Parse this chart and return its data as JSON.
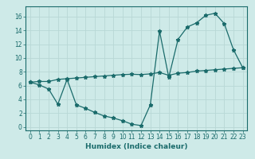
{
  "title": "",
  "xlabel": "Humidex (Indice chaleur)",
  "ylabel": "",
  "bg_color": "#ceeae8",
  "grid_color": "#b8d8d6",
  "line_color": "#1a6b6b",
  "x_ticks": [
    0,
    1,
    2,
    3,
    4,
    5,
    6,
    7,
    8,
    9,
    10,
    11,
    12,
    13,
    14,
    15,
    16,
    17,
    18,
    19,
    20,
    21,
    22,
    23
  ],
  "y_ticks": [
    0,
    2,
    4,
    6,
    8,
    10,
    12,
    14,
    16
  ],
  "xlim": [
    -0.5,
    23.5
  ],
  "ylim": [
    -0.5,
    17.5
  ],
  "curve1_x": [
    0,
    1,
    2,
    3,
    4,
    5,
    6,
    7,
    8,
    9,
    10,
    11,
    12,
    13,
    14,
    15,
    16,
    17,
    18,
    19,
    20,
    21,
    22,
    23
  ],
  "curve1_y": [
    6.5,
    6.1,
    5.5,
    3.3,
    6.9,
    3.2,
    2.7,
    2.1,
    1.6,
    1.3,
    0.9,
    0.4,
    0.2,
    3.2,
    13.9,
    7.2,
    12.7,
    14.5,
    15.1,
    16.2,
    16.5,
    15.0,
    11.2,
    8.6
  ],
  "curve2_x": [
    0,
    1,
    2,
    3,
    4,
    5,
    6,
    7,
    8,
    9,
    10,
    11,
    12,
    13,
    14,
    15,
    16,
    17,
    18,
    19,
    20,
    21,
    22,
    23
  ],
  "curve2_y": [
    6.5,
    6.6,
    6.6,
    6.9,
    7.0,
    7.1,
    7.2,
    7.3,
    7.4,
    7.5,
    7.6,
    7.65,
    7.6,
    7.7,
    7.9,
    7.5,
    7.8,
    7.9,
    8.1,
    8.2,
    8.3,
    8.4,
    8.5,
    8.6
  ],
  "tick_fontsize": 5.5,
  "xlabel_fontsize": 6.5,
  "marker": "*",
  "markersize": 3.5,
  "linewidth": 0.9
}
